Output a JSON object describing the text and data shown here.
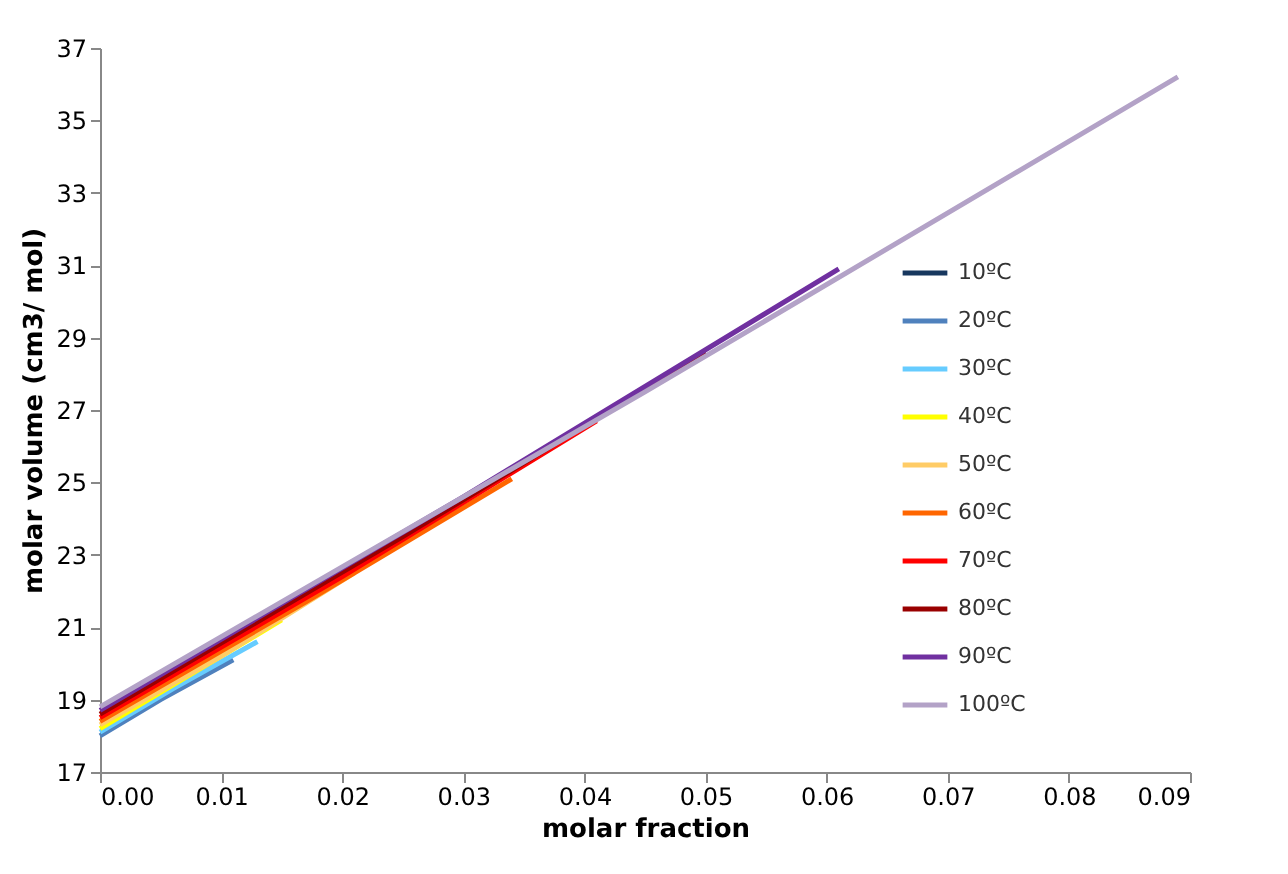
{
  "chart_data": {
    "type": "line",
    "xlabel": "molar fraction",
    "ylabel": "molar volume  (cm3/ mol)",
    "xlim": [
      0,
      0.09
    ],
    "xticks": [
      {
        "value": 0,
        "label": "0.00"
      },
      {
        "value": 0.01,
        "label": "0.01"
      },
      {
        "value": 0.02,
        "label": "0.02"
      },
      {
        "value": 0.03,
        "label": "0.03"
      },
      {
        "value": 0.04,
        "label": "0.04"
      },
      {
        "value": 0.05,
        "label": "0.05"
      },
      {
        "value": 0.06,
        "label": "0.06"
      },
      {
        "value": 0.07,
        "label": "0.07"
      },
      {
        "value": 0.08,
        "label": "0.08"
      },
      {
        "value": 0.09,
        "label": "0.09"
      }
    ],
    "ylim": [
      17,
      37
    ],
    "yticks": [
      17,
      19,
      21,
      23,
      25,
      27,
      29,
      31,
      33,
      35,
      37
    ],
    "grid": false,
    "legend": "right",
    "marker": "none",
    "line_style": "solid",
    "series": [
      {
        "name": "10ºC",
        "color": "#17375e"
      },
      {
        "name": "20ºC",
        "color": "#4f81bd",
        "x": [
          0,
          0.005,
          0.011
        ],
        "values": [
          18.0,
          19.0,
          20.1
        ]
      },
      {
        "name": "30ºC",
        "color": "#66ccff",
        "x": [
          0,
          0.006,
          0.013
        ],
        "values": [
          18.1,
          19.3,
          20.6
        ]
      },
      {
        "name": "40ºC",
        "color": "#ffff00",
        "x": [
          0,
          0.007,
          0.015
        ],
        "values": [
          18.2,
          19.6,
          21.2
        ]
      },
      {
        "name": "50ºC",
        "color": "#ffcc66",
        "x": [
          0,
          0.01,
          0.021
        ],
        "values": [
          18.3,
          20.2,
          22.5
        ]
      },
      {
        "name": "60ºC",
        "color": "#ff6600",
        "x": [
          0,
          0.017,
          0.034
        ],
        "values": [
          18.4,
          21.7,
          25.1
        ]
      },
      {
        "name": "70ºC",
        "color": "#ff0000",
        "x": [
          0,
          0.02,
          0.041
        ],
        "values": [
          18.5,
          22.4,
          26.7
        ]
      },
      {
        "name": "80ºC",
        "color": "#990000",
        "x": [
          0,
          0.025,
          0.05
        ],
        "values": [
          18.6,
          23.5,
          28.6
        ]
      },
      {
        "name": "90ºC",
        "color": "#7030a0",
        "x": [
          0,
          0.03,
          0.061
        ],
        "values": [
          18.7,
          24.6,
          30.9
        ]
      },
      {
        "name": "100ºC",
        "color": "#b3a2c7",
        "x": [
          0,
          0.045,
          0.089
        ],
        "values": [
          18.8,
          27.5,
          36.2
        ]
      }
    ]
  }
}
